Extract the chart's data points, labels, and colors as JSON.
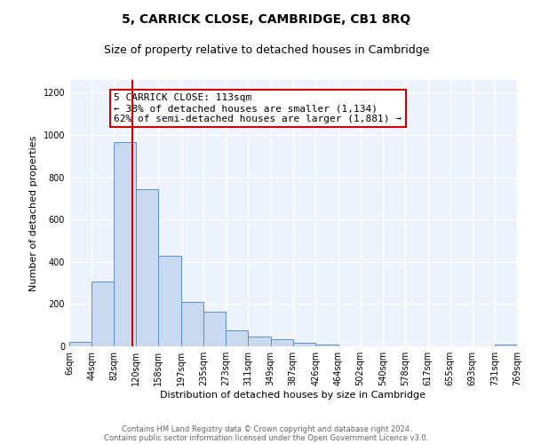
{
  "title": "5, CARRICK CLOSE, CAMBRIDGE, CB1 8RQ",
  "subtitle": "Size of property relative to detached houses in Cambridge",
  "xlabel": "Distribution of detached houses by size in Cambridge",
  "ylabel": "Number of detached properties",
  "bin_edges": [
    6,
    44,
    82,
    120,
    158,
    197,
    235,
    273,
    311,
    349,
    387,
    426,
    464,
    502,
    540,
    578,
    617,
    655,
    693,
    731,
    769
  ],
  "bar_heights": [
    20,
    305,
    965,
    745,
    430,
    210,
    165,
    75,
    48,
    33,
    18,
    7,
    0,
    0,
    0,
    0,
    0,
    0,
    0,
    8
  ],
  "bar_color": "#c9d9f0",
  "bar_edge_color": "#5b8fd4",
  "property_line_x": 113,
  "property_line_color": "#cc0000",
  "annotation_text": "5 CARRICK CLOSE: 113sqm\n← 38% of detached houses are smaller (1,134)\n62% of semi-detached houses are larger (1,881) →",
  "annotation_box_color": "#ffffff",
  "annotation_box_edge_color": "#cc0000",
  "ylim": [
    0,
    1260
  ],
  "tick_labels": [
    "6sqm",
    "44sqm",
    "82sqm",
    "120sqm",
    "158sqm",
    "197sqm",
    "235sqm",
    "273sqm",
    "311sqm",
    "349sqm",
    "387sqm",
    "426sqm",
    "464sqm",
    "502sqm",
    "540sqm",
    "578sqm",
    "617sqm",
    "655sqm",
    "693sqm",
    "731sqm",
    "769sqm"
  ],
  "footer_line1": "Contains HM Land Registry data © Crown copyright and database right 2024.",
  "footer_line2": "Contains public sector information licensed under the Open Government Licence v3.0.",
  "background_color": "#eef2fa",
  "grid_color": "#ffffff",
  "fig_bg_color": "#ffffff",
  "title_fontsize": 10,
  "subtitle_fontsize": 9,
  "annotation_fontsize": 8,
  "axis_label_fontsize": 8,
  "tick_fontsize": 7
}
